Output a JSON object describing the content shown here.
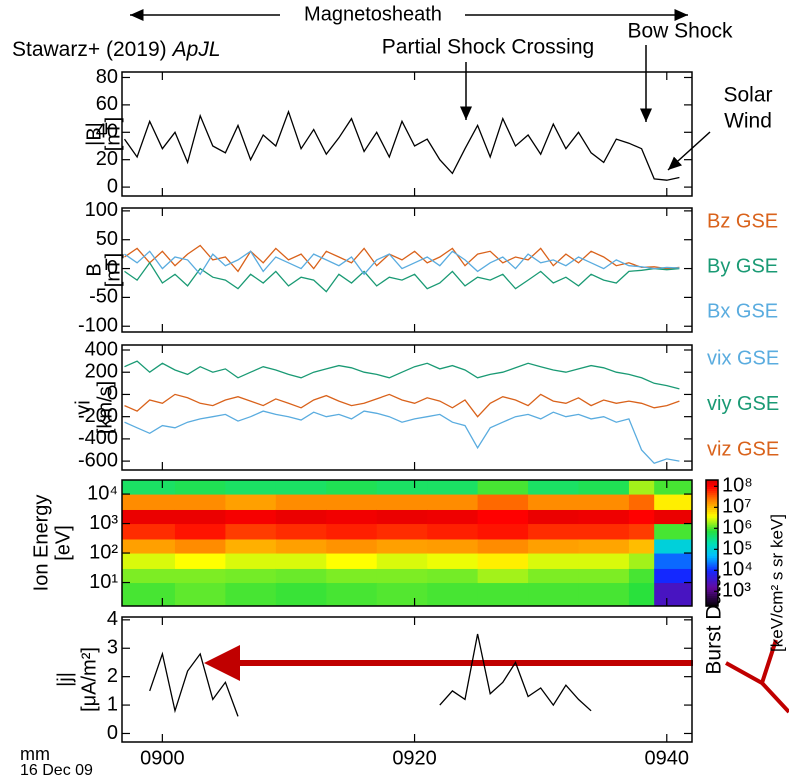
{
  "figure": {
    "annotations": [
      "Magnetosheath",
      "Stawarz+ (2019)",
      "ApJL",
      "Partial Shock Crossing",
      "Bow Shock",
      "Solar",
      "Wind",
      "Burst Data",
      "mm",
      "16 Dec 09"
    ]
  },
  "chart_data": [
    {
      "type": "line",
      "ylabel": [
        "|B|",
        "[nT]"
      ],
      "xlim": [
        -3.2,
        42
      ],
      "ylim": [
        -6.5,
        84
      ],
      "yticks": [
        0,
        20,
        40,
        60,
        80
      ],
      "x": [
        -3,
        -2,
        -1,
        0,
        1,
        2,
        3,
        4,
        5,
        6,
        7,
        8,
        9,
        10,
        11,
        12,
        13,
        14,
        15,
        16,
        17,
        18,
        19,
        20,
        21,
        22,
        23,
        24,
        25,
        26,
        27,
        28,
        29,
        30,
        31,
        32,
        33,
        34,
        35,
        36,
        37,
        38,
        39,
        40,
        41
      ],
      "series": [
        {
          "name": "|B|",
          "color": "#000000",
          "values": [
            35,
            22,
            48,
            28,
            40,
            18,
            52,
            30,
            25,
            45,
            20,
            38,
            30,
            55,
            28,
            42,
            24,
            36,
            50,
            26,
            40,
            22,
            48,
            30,
            35,
            20,
            10,
            28,
            45,
            22,
            50,
            30,
            38,
            24,
            46,
            28,
            40,
            25,
            18,
            35,
            32,
            28,
            6,
            5,
            7
          ]
        }
      ]
    },
    {
      "type": "line",
      "ylabel": [
        "B",
        "[nT]"
      ],
      "xlim": [
        -3.2,
        42
      ],
      "ylim": [
        -110,
        105
      ],
      "yticks": [
        100,
        50,
        0,
        -50,
        -100
      ],
      "x": [
        -3,
        -2,
        -1,
        0,
        1,
        2,
        3,
        4,
        5,
        6,
        7,
        8,
        9,
        10,
        11,
        12,
        13,
        14,
        15,
        16,
        17,
        18,
        19,
        20,
        21,
        22,
        23,
        24,
        25,
        26,
        27,
        28,
        29,
        30,
        31,
        32,
        33,
        34,
        35,
        36,
        37,
        38,
        39,
        40,
        41
      ],
      "series": [
        {
          "name": "Bz GSE",
          "color": "#d9621b",
          "values": [
            20,
            35,
            10,
            30,
            5,
            25,
            40,
            15,
            20,
            -5,
            30,
            10,
            35,
            15,
            25,
            0,
            30,
            20,
            10,
            35,
            5,
            25,
            15,
            30,
            10,
            20,
            35,
            5,
            25,
            30,
            10,
            20,
            15,
            35,
            5,
            25,
            10,
            30,
            20,
            5,
            10,
            2,
            3,
            0,
            2
          ]
        },
        {
          "name": "By GSE",
          "color": "#1a9a74",
          "values": [
            -5,
            -20,
            10,
            -25,
            -10,
            -30,
            0,
            -15,
            -20,
            -35,
            -10,
            -25,
            -5,
            -30,
            -15,
            -20,
            -40,
            -10,
            -25,
            -5,
            -30,
            -15,
            -20,
            -10,
            -35,
            -25,
            -5,
            -30,
            -15,
            -20,
            -10,
            -35,
            -20,
            -5,
            -25,
            -15,
            -30,
            -10,
            -20,
            -25,
            -5,
            -3,
            0,
            -2,
            0
          ]
        },
        {
          "name": "Bx GSE",
          "color": "#5aacdf",
          "values": [
            25,
            10,
            30,
            0,
            20,
            15,
            -10,
            25,
            5,
            15,
            30,
            -5,
            20,
            10,
            0,
            25,
            15,
            5,
            20,
            -10,
            15,
            25,
            0,
            10,
            20,
            5,
            30,
            15,
            -5,
            10,
            20,
            0,
            25,
            10,
            15,
            5,
            20,
            10,
            0,
            15,
            5,
            3,
            0,
            2,
            1
          ]
        }
      ]
    },
    {
      "type": "line",
      "ylabel": [
        "vi",
        "[km/s]"
      ],
      "xlim": [
        -3.2,
        42
      ],
      "ylim": [
        -680,
        445
      ],
      "yticks": [
        400,
        200,
        0,
        -200,
        -400,
        -600
      ],
      "x": [
        -3,
        -2,
        -1,
        0,
        1,
        2,
        3,
        4,
        5,
        6,
        7,
        8,
        9,
        10,
        11,
        12,
        13,
        14,
        15,
        16,
        17,
        18,
        19,
        20,
        21,
        22,
        23,
        24,
        25,
        26,
        27,
        28,
        29,
        30,
        31,
        32,
        33,
        34,
        35,
        36,
        37,
        38,
        39,
        40,
        41
      ],
      "series": [
        {
          "name": "vix GSE",
          "color": "#5aacdf",
          "values": [
            -250,
            -300,
            -350,
            -280,
            -300,
            -250,
            -220,
            -200,
            -180,
            -240,
            -200,
            -150,
            -180,
            -200,
            -230,
            -160,
            -200,
            -180,
            -220,
            -150,
            -170,
            -200,
            -250,
            -220,
            -200,
            -180,
            -250,
            -280,
            -480,
            -300,
            -250,
            -200,
            -180,
            -220,
            -160,
            -200,
            -180,
            -220,
            -200,
            -250,
            -220,
            -500,
            -620,
            -580,
            -600
          ]
        },
        {
          "name": "viy GSE",
          "color": "#1a9a74",
          "values": [
            250,
            300,
            200,
            280,
            220,
            180,
            250,
            200,
            230,
            150,
            200,
            250,
            220,
            180,
            150,
            200,
            230,
            260,
            240,
            200,
            180,
            150,
            200,
            250,
            280,
            230,
            260,
            220,
            150,
            180,
            200,
            240,
            280,
            250,
            220,
            200,
            230,
            260,
            240,
            200,
            180,
            150,
            100,
            80,
            50
          ]
        },
        {
          "name": "viz GSE",
          "color": "#d9621b",
          "values": [
            -100,
            -150,
            -50,
            -80,
            0,
            -30,
            -80,
            -100,
            -50,
            -20,
            -60,
            -100,
            -40,
            -80,
            -120,
            -50,
            -10,
            -60,
            -100,
            -80,
            -40,
            0,
            -50,
            -80,
            -30,
            -60,
            -120,
            -50,
            -200,
            -80,
            -20,
            -50,
            -100,
            0,
            -60,
            -80,
            -30,
            -100,
            -50,
            -80,
            -60,
            -80,
            -120,
            -100,
            -60
          ]
        }
      ]
    },
    {
      "type": "heatmap",
      "ylabel": [
        "Ion Energy",
        "[eV]"
      ],
      "xlim": [
        -3.2,
        42
      ],
      "ylim": [
        1.6,
        30000
      ],
      "log_y": true,
      "yticks": [
        {
          "value": 10000,
          "label": "10⁴"
        },
        {
          "value": 1000,
          "label": "10³"
        },
        {
          "value": 100,
          "label": "10²"
        },
        {
          "value": 10,
          "label": "10¹"
        }
      ],
      "x_bins": [
        -3.2,
        1,
        5,
        9,
        13,
        17,
        21,
        25,
        29,
        33,
        37,
        39,
        42
      ],
      "y_bins": [
        1.6,
        10,
        30,
        100,
        300,
        1000,
        3000,
        10000,
        30000
      ],
      "z": [
        [
          1000000.0,
          1500000.0,
          3000000.0,
          15000000.0,
          60000000.0,
          150000000.0,
          20000000.0,
          500000.0
        ],
        [
          1200000.0,
          1500000.0,
          4000000.0,
          20000000.0,
          80000000.0,
          150000000.0,
          20000000.0,
          600000.0
        ],
        [
          1000000.0,
          1400000.0,
          3000000.0,
          12000000.0,
          50000000.0,
          120000000.0,
          15000000.0,
          500000.0
        ],
        [
          900000.0,
          1300000.0,
          3000000.0,
          15000000.0,
          60000000.0,
          150000000.0,
          20000000.0,
          500000.0
        ],
        [
          1000000.0,
          1500000.0,
          4000000.0,
          18000000.0,
          70000000.0,
          130000000.0,
          20000000.0,
          600000.0
        ],
        [
          1100000.0,
          1500000.0,
          3000000.0,
          15000000.0,
          60000000.0,
          150000000.0,
          20000000.0,
          500000.0
        ],
        [
          1000000.0,
          1400000.0,
          3500000.0,
          16000000.0,
          70000000.0,
          140000000.0,
          20000000.0,
          500000.0
        ],
        [
          1000000.0,
          2000000.0,
          5000000.0,
          20000000.0,
          80000000.0,
          100000000.0,
          30000000.0,
          1000000.0
        ],
        [
          1000000.0,
          1500000.0,
          3000000.0,
          15000000.0,
          60000000.0,
          150000000.0,
          20000000.0,
          500000.0
        ],
        [
          1000000.0,
          1500000.0,
          3000000.0,
          14000000.0,
          60000000.0,
          140000000.0,
          20000000.0,
          600000.0
        ],
        [
          800000.0,
          1000000.0,
          2000000.0,
          10000000.0,
          50000000.0,
          100000000.0,
          30000000.0,
          2000000.0
        ],
        [
          3000.0,
          10000.0,
          20000.0,
          100000.0,
          1000000.0,
          150000000.0,
          5000000.0,
          1000000.0
        ]
      ],
      "zlim": [
        200,
        200000000.0
      ],
      "zticks": [
        {
          "value": 100000000.0,
          "label": "10⁸"
        },
        {
          "value": 10000000.0,
          "label": "10⁷"
        },
        {
          "value": 1000000.0,
          "label": "10⁶"
        },
        {
          "value": 100000.0,
          "label": "10⁵"
        },
        {
          "value": 10000.0,
          "label": "10⁴"
        },
        {
          "value": 1000.0,
          "label": "10³"
        }
      ],
      "zlabel": "[keV/cm² s sr keV]"
    },
    {
      "type": "line",
      "ylabel": [
        "|j|",
        "[μA/m²]"
      ],
      "xlim": [
        -3.2,
        42
      ],
      "ylim": [
        -0.3,
        4.1
      ],
      "yticks": [
        0,
        1,
        2,
        3,
        4
      ],
      "xticks": [
        {
          "value": 0,
          "label": "0900"
        },
        {
          "value": 20,
          "label": "0920"
        },
        {
          "value": 40,
          "label": "0940"
        }
      ],
      "x": [
        -3,
        -2,
        -1,
        0,
        1,
        2,
        3,
        4,
        5,
        6,
        7,
        8,
        9,
        10,
        11,
        12,
        13,
        14,
        15,
        16,
        17,
        18,
        19,
        20,
        21,
        22,
        23,
        24,
        25,
        26,
        27,
        28,
        29,
        30,
        31,
        32,
        33,
        34,
        35,
        36,
        37,
        38,
        39,
        40,
        41
      ],
      "series": [
        {
          "name": "|j|",
          "color": "#000000",
          "values": [
            null,
            null,
            1.5,
            2.8,
            0.8,
            2.2,
            2.8,
            1.2,
            1.8,
            0.6,
            null,
            null,
            null,
            null,
            null,
            null,
            null,
            null,
            null,
            null,
            null,
            null,
            null,
            null,
            null,
            1.0,
            1.5,
            1.2,
            3.5,
            1.4,
            1.8,
            2.5,
            1.3,
            1.6,
            1.0,
            1.7,
            1.2,
            0.8,
            null,
            null,
            null,
            null,
            null,
            null,
            null
          ]
        }
      ]
    }
  ]
}
